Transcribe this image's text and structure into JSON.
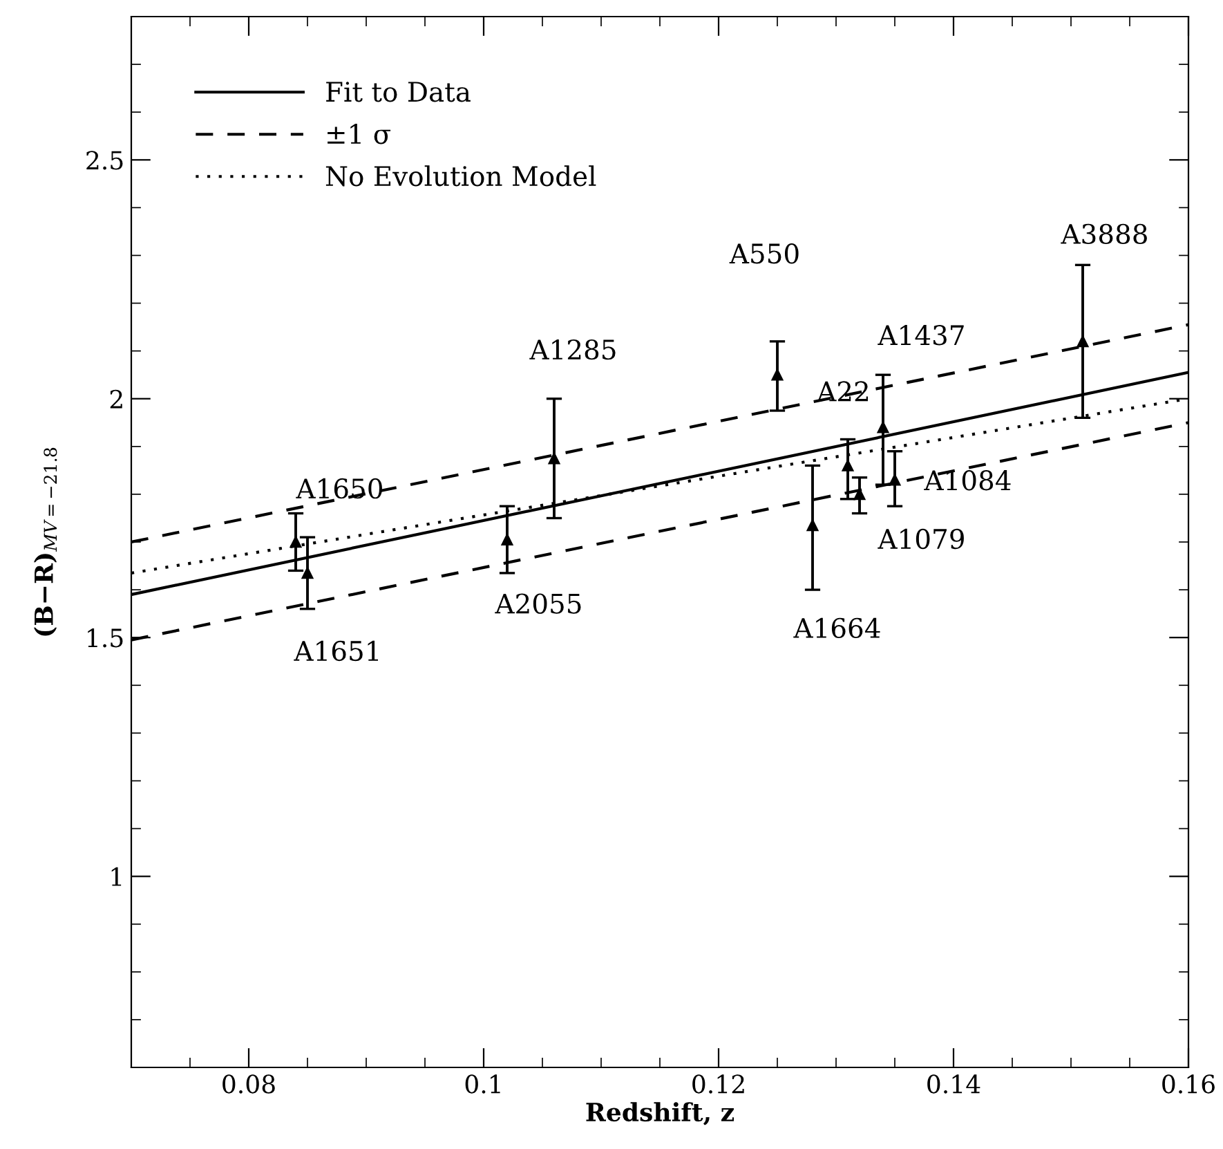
{
  "chart_data": {
    "type": "scatter",
    "xlabel": "Redshift, z",
    "ylabel": "(B−R)$_{MV=−21.8}$",
    "xlim": [
      0.07,
      0.16
    ],
    "ylim": [
      0.6,
      2.8
    ],
    "xticks": [
      0.08,
      0.1,
      0.12,
      0.14,
      0.16
    ],
    "yticks": [
      1,
      1.5,
      2,
      2.5
    ],
    "grid": false,
    "legend": "top left",
    "marker": "triangle",
    "series": [
      {
        "color": "#000000",
        "x": [
          0.084,
          0.085,
          0.102,
          0.106,
          0.125,
          0.128,
          0.131,
          0.132,
          0.134,
          0.135,
          0.151
        ],
        "values": [
          1.7,
          1.635,
          1.705,
          1.875,
          2.05,
          1.735,
          1.86,
          1.8,
          1.94,
          1.83,
          2.12
        ],
        "errors": [
          [
            1.64,
            1.76
          ],
          [
            1.56,
            1.71
          ],
          [
            1.635,
            1.775
          ],
          [
            1.75,
            2.0
          ],
          [
            1.975,
            2.12
          ],
          [
            1.6,
            1.86
          ],
          [
            1.79,
            1.915
          ],
          [
            1.76,
            1.835
          ],
          [
            1.82,
            2.05
          ],
          [
            1.775,
            1.89
          ],
          [
            1.96,
            2.28
          ]
        ]
      },
      {
        "type": "line",
        "name": "Fit to Data",
        "color": "#000000",
        "line_style": "solid",
        "marker": "none",
        "x": [
          0.07,
          0.16
        ],
        "values": [
          1.59,
          2.055
        ]
      },
      {
        "type": "line",
        "name": "±1 σ",
        "color": "#000000",
        "line_style": "dashed",
        "marker": "none",
        "x": [
          0.07,
          0.16
        ],
        "values": [
          1.7,
          2.155
        ]
      },
      {
        "type": "line",
        "color": "#000000",
        "line_style": "dashed",
        "marker": "none",
        "x": [
          0.07,
          0.16
        ],
        "values": [
          1.495,
          1.95
        ]
      },
      {
        "type": "line",
        "name": "No Evolution Model",
        "color": "#000000",
        "line_style": "dotted",
        "marker": "none",
        "x": [
          0.07,
          0.16
        ],
        "values": [
          1.635,
          2.0
        ]
      }
    ],
    "annotations": [
      "A1650",
      "A1651",
      "A2055",
      "A1285",
      "A550",
      "A1664",
      "A22",
      "A1079",
      "A1437",
      "A1084",
      "A3888"
    ]
  }
}
